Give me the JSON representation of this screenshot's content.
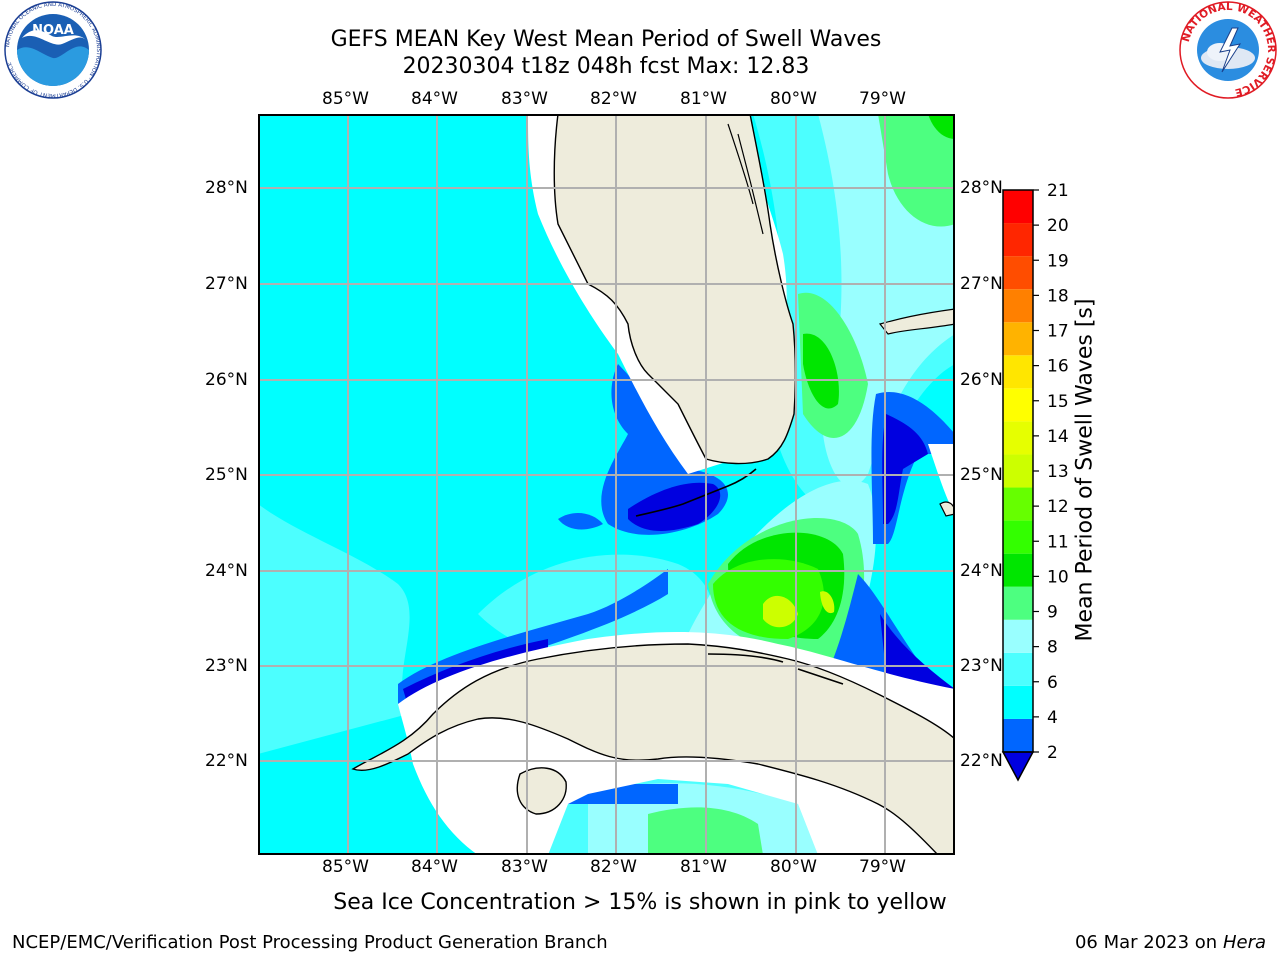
{
  "header": {
    "title_line1": "GEFS MEAN Key West Mean Period of Swell Waves",
    "title_line2": "20230304 t18z 048h fcst   Max: 12.83"
  },
  "logos": {
    "noaa_text": "NOAA",
    "noaa_ring": "NATIONAL OCEANIC AND ATMOSPHERIC ADMINISTRATION · U.S. DEPARTMENT OF COMMERCE",
    "nws_ring": "NATIONAL WEATHER SERVICE"
  },
  "map": {
    "lon_labels": [
      "85°W",
      "84°W",
      "83°W",
      "82°W",
      "81°W",
      "80°W",
      "79°W"
    ],
    "lat_labels": [
      "28°N",
      "27°N",
      "26°N",
      "25°N",
      "24°N",
      "23°N",
      "22°N"
    ],
    "colors": {
      "land": "#eeecdc",
      "ocean_4_6": "#00ffff",
      "ocean_6_8": "#4cffff",
      "ocean_8_9": "#99ffff",
      "ocean_9_10": "#4dff80",
      "ocean_10_11": "#00e600",
      "ocean_11_12": "#33ff00",
      "ocean_12_13": "#ccff00",
      "ocean_2_4": "#0066ff",
      "ocean_lt2": "#0000e0",
      "grid": "#b0b0b0"
    }
  },
  "colorbar": {
    "label": "Mean Period of Swell Waves [s]",
    "ticks": [
      "2",
      "4",
      "6",
      "8",
      "9",
      "10",
      "11",
      "12",
      "13",
      "14",
      "15",
      "16",
      "17",
      "18",
      "19",
      "20",
      "21"
    ],
    "bands": [
      "#0066ff",
      "#00ffff",
      "#4cffff",
      "#99ffff",
      "#4dff80",
      "#00e600",
      "#33ff00",
      "#66ff00",
      "#ccff00",
      "#e6ff00",
      "#ffff00",
      "#ffe600",
      "#ffb300",
      "#ff8000",
      "#ff4d00",
      "#ff2600",
      "#ff0000"
    ],
    "under_color": "#0000e0"
  },
  "footer": {
    "note": "Sea Ice Concentration > 15% is shown in pink to yellow",
    "left": "NCEP/EMC/Verification Post Processing Product Generation Branch",
    "date": "06 Mar 2023 on",
    "machine": "Hera"
  }
}
